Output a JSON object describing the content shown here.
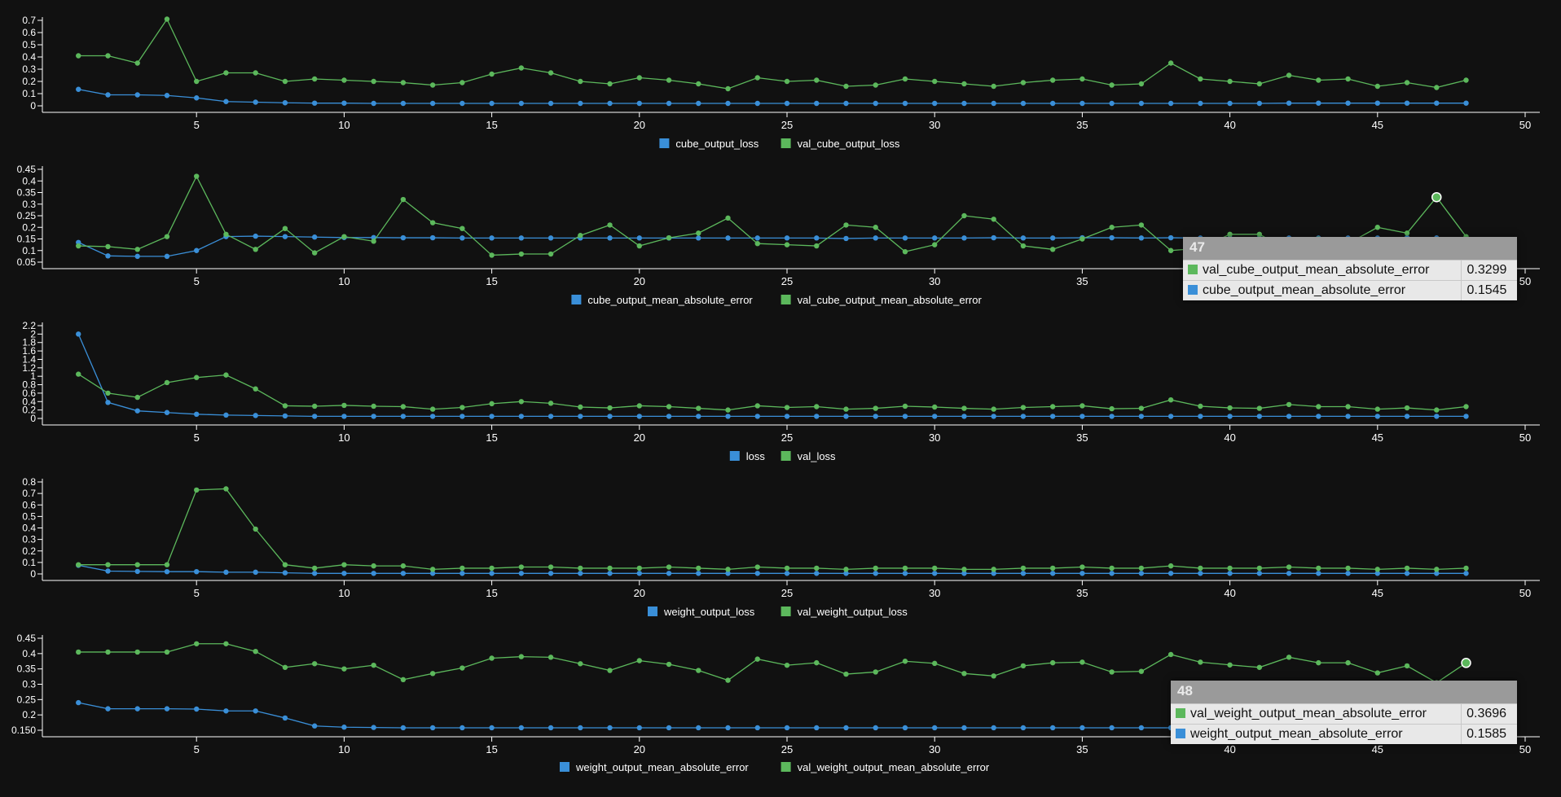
{
  "colors": {
    "train": "#3a8fd8",
    "val": "#5cb85c",
    "axis": "#ffffff",
    "background": "#111111"
  },
  "chart_data": [
    {
      "type": "line",
      "xlim": [
        0,
        50
      ],
      "xticks": [
        5,
        10,
        15,
        20,
        25,
        30,
        35,
        40,
        45,
        50
      ],
      "ylim": [
        0,
        0.7
      ],
      "yticks": [
        0,
        0.1,
        0.2,
        0.3,
        0.4,
        0.5,
        0.6,
        0.7
      ],
      "ytick_labels": [
        "0",
        "0.1",
        "0.2",
        "0.3",
        "0.4",
        "0.5",
        "0.6",
        "0.7"
      ],
      "legend": "bottom-center",
      "grid": false,
      "series": [
        {
          "name": "cube_output_loss",
          "color": "#3a8fd8",
          "values": [
            0.135,
            0.09,
            0.09,
            0.085,
            0.065,
            0.035,
            0.03,
            0.025,
            0.022,
            0.022,
            0.02,
            0.02,
            0.02,
            0.02,
            0.02,
            0.02,
            0.02,
            0.02,
            0.02,
            0.02,
            0.02,
            0.02,
            0.02,
            0.02,
            0.02,
            0.02,
            0.02,
            0.02,
            0.02,
            0.02,
            0.02,
            0.02,
            0.02,
            0.02,
            0.02,
            0.02,
            0.02,
            0.02,
            0.02,
            0.02,
            0.02,
            0.022,
            0.022,
            0.022,
            0.022,
            0.022,
            0.022,
            0.022
          ]
        },
        {
          "name": "val_cube_output_loss",
          "color": "#5cb85c",
          "values": [
            0.41,
            0.41,
            0.35,
            0.71,
            0.2,
            0.27,
            0.27,
            0.2,
            0.22,
            0.21,
            0.2,
            0.19,
            0.17,
            0.19,
            0.26,
            0.31,
            0.27,
            0.2,
            0.18,
            0.23,
            0.21,
            0.18,
            0.14,
            0.23,
            0.2,
            0.21,
            0.16,
            0.17,
            0.22,
            0.2,
            0.18,
            0.16,
            0.19,
            0.21,
            0.22,
            0.17,
            0.18,
            0.35,
            0.22,
            0.2,
            0.18,
            0.25,
            0.21,
            0.22,
            0.16,
            0.19,
            0.15,
            0.21
          ]
        }
      ]
    },
    {
      "type": "line",
      "xlim": [
        0,
        50
      ],
      "xticks": [
        5,
        10,
        15,
        20,
        25,
        30,
        35,
        40,
        45,
        50
      ],
      "ylim": [
        0.05,
        0.45
      ],
      "yticks": [
        0.05,
        0.1,
        0.15,
        0.2,
        0.25,
        0.3,
        0.35,
        0.4,
        0.45
      ],
      "ytick_labels": [
        "0.05",
        "0.1",
        "0.15",
        "0.2",
        "0.25",
        "0.3",
        "0.35",
        "0.4",
        "0.45"
      ],
      "legend": "bottom-center",
      "grid": false,
      "series": [
        {
          "name": "cube_output_mean_absolute_error",
          "color": "#3a8fd8",
          "values": [
            0.135,
            0.077,
            0.075,
            0.075,
            0.1,
            0.16,
            0.162,
            0.16,
            0.158,
            0.156,
            0.156,
            0.155,
            0.155,
            0.154,
            0.154,
            0.154,
            0.154,
            0.154,
            0.154,
            0.154,
            0.154,
            0.154,
            0.154,
            0.154,
            0.154,
            0.154,
            0.152,
            0.154,
            0.154,
            0.154,
            0.154,
            0.155,
            0.154,
            0.154,
            0.155,
            0.155,
            0.154,
            0.155,
            0.154,
            0.154,
            0.154,
            0.154,
            0.154,
            0.154,
            0.154,
            0.155,
            0.1545,
            0.155
          ]
        },
        {
          "name": "val_cube_output_mean_absolute_error",
          "color": "#5cb85c",
          "values": [
            0.12,
            0.117,
            0.105,
            0.16,
            0.42,
            0.17,
            0.105,
            0.195,
            0.09,
            0.16,
            0.14,
            0.32,
            0.22,
            0.195,
            0.08,
            0.085,
            0.085,
            0.165,
            0.21,
            0.12,
            0.155,
            0.175,
            0.24,
            0.13,
            0.125,
            0.12,
            0.21,
            0.2,
            0.095,
            0.125,
            0.25,
            0.235,
            0.12,
            0.105,
            0.15,
            0.2,
            0.21,
            0.1,
            0.11,
            0.17,
            0.17,
            0.1,
            0.15,
            0.13,
            0.2,
            0.175,
            0.3299,
            0.16
          ]
        }
      ]
    },
    {
      "type": "line",
      "xlim": [
        0,
        50
      ],
      "xticks": [
        5,
        10,
        15,
        20,
        25,
        30,
        35,
        40,
        45,
        50
      ],
      "ylim": [
        0,
        2.2
      ],
      "yticks": [
        0,
        0.2,
        0.4,
        0.6,
        0.8,
        1,
        1.2,
        1.4,
        1.6,
        1.8,
        2,
        2.2
      ],
      "ytick_labels": [
        "0",
        "0.2",
        "0.4",
        "0.6",
        "0.8",
        "1",
        "1.2",
        "1.4",
        "1.6",
        "1.8",
        "2",
        "2.2"
      ],
      "legend": "bottom-center",
      "grid": false,
      "series": [
        {
          "name": "loss",
          "color": "#3a8fd8",
          "values": [
            2.0,
            0.38,
            0.18,
            0.14,
            0.1,
            0.08,
            0.07,
            0.06,
            0.05,
            0.05,
            0.05,
            0.05,
            0.05,
            0.05,
            0.05,
            0.05,
            0.05,
            0.05,
            0.05,
            0.05,
            0.05,
            0.05,
            0.05,
            0.05,
            0.05,
            0.05,
            0.05,
            0.05,
            0.05,
            0.05,
            0.05,
            0.05,
            0.05,
            0.05,
            0.05,
            0.05,
            0.05,
            0.05,
            0.05,
            0.05,
            0.05,
            0.05,
            0.05,
            0.05,
            0.05,
            0.05,
            0.05,
            0.05
          ]
        },
        {
          "name": "val_loss",
          "color": "#5cb85c",
          "values": [
            1.05,
            0.6,
            0.5,
            0.85,
            0.97,
            1.03,
            0.7,
            0.3,
            0.29,
            0.31,
            0.29,
            0.28,
            0.22,
            0.26,
            0.35,
            0.4,
            0.36,
            0.27,
            0.25,
            0.3,
            0.28,
            0.24,
            0.2,
            0.3,
            0.26,
            0.28,
            0.22,
            0.24,
            0.29,
            0.27,
            0.24,
            0.22,
            0.26,
            0.28,
            0.3,
            0.23,
            0.24,
            0.44,
            0.29,
            0.25,
            0.24,
            0.33,
            0.28,
            0.28,
            0.22,
            0.25,
            0.2,
            0.28
          ]
        }
      ]
    },
    {
      "type": "line",
      "xlim": [
        0,
        50
      ],
      "xticks": [
        5,
        10,
        15,
        20,
        25,
        30,
        35,
        40,
        45,
        50
      ],
      "ylim": [
        0,
        0.8
      ],
      "yticks": [
        0,
        0.1,
        0.2,
        0.3,
        0.4,
        0.5,
        0.6,
        0.7,
        0.8
      ],
      "ytick_labels": [
        "0",
        "0.1",
        "0.2",
        "0.3",
        "0.4",
        "0.5",
        "0.6",
        "0.7",
        "0.8"
      ],
      "legend": "bottom-center",
      "grid": false,
      "series": [
        {
          "name": "weight_output_loss",
          "color": "#3a8fd8",
          "values": [
            0.075,
            0.025,
            0.022,
            0.02,
            0.02,
            0.015,
            0.015,
            0.01,
            0.005,
            0.005,
            0.005,
            0.005,
            0.005,
            0.005,
            0.005,
            0.005,
            0.005,
            0.005,
            0.005,
            0.005,
            0.005,
            0.005,
            0.005,
            0.005,
            0.005,
            0.005,
            0.005,
            0.005,
            0.005,
            0.005,
            0.005,
            0.005,
            0.005,
            0.005,
            0.005,
            0.005,
            0.005,
            0.005,
            0.005,
            0.005,
            0.005,
            0.005,
            0.005,
            0.005,
            0.005,
            0.005,
            0.005,
            0.005
          ]
        },
        {
          "name": "val_weight_output_loss",
          "color": "#5cb85c",
          "values": [
            0.08,
            0.08,
            0.08,
            0.08,
            0.73,
            0.74,
            0.39,
            0.08,
            0.05,
            0.08,
            0.07,
            0.07,
            0.04,
            0.05,
            0.05,
            0.06,
            0.06,
            0.05,
            0.05,
            0.05,
            0.06,
            0.05,
            0.04,
            0.06,
            0.05,
            0.05,
            0.04,
            0.05,
            0.05,
            0.05,
            0.04,
            0.04,
            0.05,
            0.05,
            0.06,
            0.05,
            0.05,
            0.07,
            0.05,
            0.05,
            0.05,
            0.06,
            0.05,
            0.05,
            0.04,
            0.05,
            0.04,
            0.05
          ]
        }
      ]
    },
    {
      "type": "line",
      "xlim": [
        0,
        50
      ],
      "xticks": [
        5,
        10,
        15,
        20,
        25,
        30,
        35,
        40,
        45,
        50
      ],
      "ylim": [
        0.15,
        0.45
      ],
      "yticks": [
        0.15,
        0.2,
        0.25,
        0.3,
        0.35,
        0.4,
        0.45
      ],
      "ytick_labels": [
        "0.150",
        "0.2",
        "0.25",
        "0.3",
        "0.35",
        "0.4",
        "0.45"
      ],
      "legend": "bottom-center",
      "grid": false,
      "series": [
        {
          "name": "weight_output_mean_absolute_error",
          "color": "#3a8fd8",
          "values": [
            0.24,
            0.22,
            0.22,
            0.22,
            0.219,
            0.213,
            0.213,
            0.19,
            0.164,
            0.16,
            0.159,
            0.158,
            0.158,
            0.158,
            0.158,
            0.158,
            0.158,
            0.158,
            0.158,
            0.158,
            0.158,
            0.158,
            0.158,
            0.158,
            0.158,
            0.158,
            0.158,
            0.158,
            0.158,
            0.158,
            0.158,
            0.158,
            0.158,
            0.158,
            0.158,
            0.158,
            0.158,
            0.158,
            0.158,
            0.158,
            0.158,
            0.158,
            0.158,
            0.158,
            0.158,
            0.158,
            0.158,
            0.1585
          ]
        },
        {
          "name": "val_weight_output_mean_absolute_error",
          "color": "#5cb85c",
          "values": [
            0.405,
            0.405,
            0.405,
            0.405,
            0.432,
            0.432,
            0.407,
            0.355,
            0.367,
            0.35,
            0.362,
            0.315,
            0.335,
            0.353,
            0.385,
            0.39,
            0.388,
            0.367,
            0.345,
            0.377,
            0.365,
            0.345,
            0.313,
            0.382,
            0.362,
            0.37,
            0.333,
            0.34,
            0.375,
            0.368,
            0.335,
            0.327,
            0.36,
            0.37,
            0.372,
            0.34,
            0.342,
            0.397,
            0.372,
            0.363,
            0.355,
            0.388,
            0.37,
            0.37,
            0.337,
            0.36,
            0.305,
            0.3696
          ]
        }
      ]
    }
  ],
  "tooltips": [
    {
      "epoch": "47",
      "rows": [
        {
          "name": "val_cube_output_mean_absolute_error",
          "value": "0.3299",
          "color": "#5cb85c"
        },
        {
          "name": "cube_output_mean_absolute_error",
          "value": "0.1545",
          "color": "#3a8fd8"
        }
      ]
    },
    {
      "epoch": "48",
      "rows": [
        {
          "name": "val_weight_output_mean_absolute_error",
          "value": "0.3696",
          "color": "#5cb85c"
        },
        {
          "name": "weight_output_mean_absolute_error",
          "value": "0.1585",
          "color": "#3a8fd8"
        }
      ]
    }
  ]
}
